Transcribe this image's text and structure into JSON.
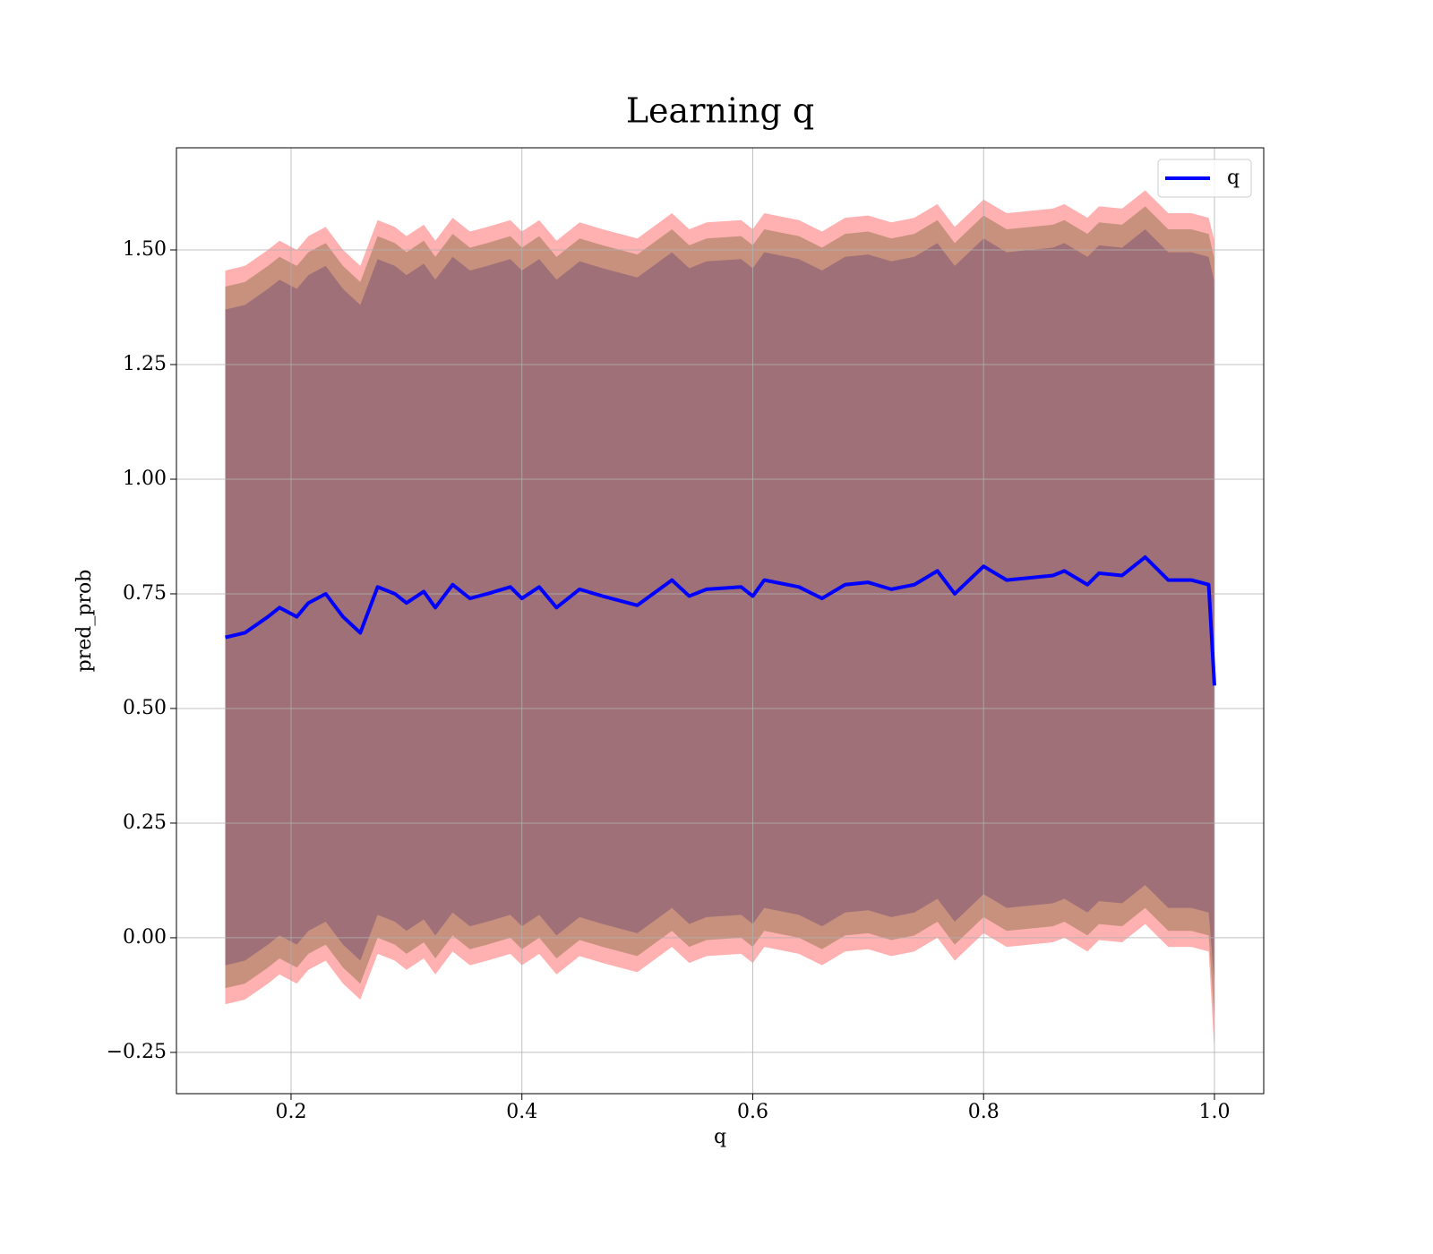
{
  "chart_data": {
    "type": "line",
    "title": "Learning q",
    "xlabel": "q",
    "ylabel": "pred_prob",
    "x": [
      0.143,
      0.16,
      0.18,
      0.19,
      0.205,
      0.215,
      0.23,
      0.245,
      0.26,
      0.275,
      0.29,
      0.3,
      0.315,
      0.325,
      0.34,
      0.355,
      0.37,
      0.39,
      0.4,
      0.415,
      0.43,
      0.45,
      0.47,
      0.5,
      0.53,
      0.545,
      0.56,
      0.59,
      0.6,
      0.61,
      0.64,
      0.66,
      0.68,
      0.7,
      0.72,
      0.74,
      0.76,
      0.775,
      0.8,
      0.82,
      0.86,
      0.87,
      0.89,
      0.9,
      0.92,
      0.94,
      0.96,
      0.98,
      0.995,
      1.0
    ],
    "series": [
      {
        "name": "q",
        "color": "#0000ff",
        "values": [
          0.655,
          0.665,
          0.7,
          0.72,
          0.7,
          0.73,
          0.75,
          0.7,
          0.665,
          0.765,
          0.75,
          0.73,
          0.755,
          0.72,
          0.77,
          0.74,
          0.75,
          0.765,
          0.74,
          0.765,
          0.72,
          0.76,
          0.745,
          0.725,
          0.78,
          0.745,
          0.76,
          0.765,
          0.745,
          0.78,
          0.765,
          0.74,
          0.77,
          0.775,
          0.76,
          0.77,
          0.8,
          0.75,
          0.81,
          0.78,
          0.79,
          0.8,
          0.77,
          0.795,
          0.79,
          0.83,
          0.78,
          0.78,
          0.77,
          0.55
        ]
      }
    ],
    "bands": [
      {
        "color": "#ffb0b0",
        "upper": [
          1.455,
          1.465,
          1.5,
          1.52,
          1.5,
          1.53,
          1.55,
          1.5,
          1.465,
          1.565,
          1.55,
          1.53,
          1.555,
          1.52,
          1.57,
          1.54,
          1.55,
          1.565,
          1.54,
          1.565,
          1.52,
          1.56,
          1.545,
          1.525,
          1.58,
          1.545,
          1.56,
          1.565,
          1.545,
          1.58,
          1.565,
          1.54,
          1.57,
          1.575,
          1.56,
          1.57,
          1.6,
          1.55,
          1.61,
          1.58,
          1.59,
          1.6,
          1.57,
          1.595,
          1.59,
          1.63,
          1.58,
          1.58,
          1.57,
          1.52
        ],
        "lower": [
          -0.145,
          -0.135,
          -0.1,
          -0.08,
          -0.1,
          -0.07,
          -0.05,
          -0.1,
          -0.135,
          -0.035,
          -0.05,
          -0.07,
          -0.045,
          -0.08,
          -0.03,
          -0.06,
          -0.05,
          -0.035,
          -0.06,
          -0.035,
          -0.08,
          -0.04,
          -0.055,
          -0.075,
          -0.02,
          -0.055,
          -0.04,
          -0.035,
          -0.055,
          -0.02,
          -0.035,
          -0.06,
          -0.03,
          -0.025,
          -0.04,
          -0.03,
          0,
          -0.05,
          0.01,
          -0.02,
          -0.01,
          0,
          -0.03,
          -0.005,
          -0.01,
          0.03,
          -0.02,
          -0.02,
          -0.03,
          -0.25
        ]
      },
      {
        "color": "#c8917e",
        "upper": [
          1.42,
          1.43,
          1.465,
          1.485,
          1.465,
          1.495,
          1.515,
          1.465,
          1.43,
          1.53,
          1.515,
          1.495,
          1.52,
          1.485,
          1.535,
          1.505,
          1.515,
          1.53,
          1.505,
          1.53,
          1.485,
          1.525,
          1.51,
          1.49,
          1.545,
          1.51,
          1.525,
          1.53,
          1.51,
          1.545,
          1.53,
          1.505,
          1.535,
          1.54,
          1.525,
          1.535,
          1.565,
          1.515,
          1.575,
          1.545,
          1.555,
          1.565,
          1.535,
          1.56,
          1.555,
          1.595,
          1.545,
          1.545,
          1.535,
          1.48
        ],
        "lower": [
          -0.11,
          -0.1,
          -0.065,
          -0.045,
          -0.065,
          -0.035,
          -0.015,
          -0.065,
          -0.1,
          0,
          -0.015,
          -0.035,
          -0.01,
          -0.045,
          0.005,
          -0.025,
          -0.015,
          0,
          -0.025,
          0,
          -0.045,
          -0.005,
          -0.02,
          -0.04,
          0.015,
          -0.02,
          -0.005,
          0,
          -0.02,
          0.015,
          0,
          -0.025,
          0.005,
          0.01,
          -0.005,
          0.005,
          0.035,
          -0.015,
          0.045,
          0.015,
          0.025,
          0.035,
          0.005,
          0.03,
          0.025,
          0.065,
          0.015,
          0.015,
          0.005,
          -0.18
        ]
      },
      {
        "color": "#a07078",
        "upper": [
          1.37,
          1.38,
          1.415,
          1.435,
          1.415,
          1.445,
          1.465,
          1.415,
          1.38,
          1.48,
          1.465,
          1.445,
          1.47,
          1.435,
          1.485,
          1.455,
          1.465,
          1.48,
          1.455,
          1.48,
          1.435,
          1.475,
          1.46,
          1.44,
          1.495,
          1.46,
          1.475,
          1.48,
          1.46,
          1.495,
          1.48,
          1.455,
          1.485,
          1.49,
          1.475,
          1.485,
          1.515,
          1.465,
          1.525,
          1.495,
          1.505,
          1.515,
          1.485,
          1.51,
          1.505,
          1.545,
          1.495,
          1.495,
          1.485,
          1.43
        ],
        "lower": [
          -0.06,
          -0.05,
          -0.015,
          0.005,
          -0.015,
          0.015,
          0.035,
          -0.015,
          -0.05,
          0.05,
          0.035,
          0.015,
          0.04,
          0.005,
          0.055,
          0.025,
          0.035,
          0.05,
          0.025,
          0.05,
          0.005,
          0.045,
          0.03,
          0.01,
          0.065,
          0.03,
          0.045,
          0.05,
          0.03,
          0.065,
          0.05,
          0.025,
          0.055,
          0.06,
          0.045,
          0.055,
          0.085,
          0.035,
          0.095,
          0.065,
          0.075,
          0.085,
          0.055,
          0.08,
          0.075,
          0.115,
          0.065,
          0.065,
          0.055,
          -0.1
        ]
      }
    ],
    "xlim": [
      0.1007,
      1.0427
    ],
    "ylim": [
      -0.34,
      1.7227
    ],
    "xticks": [
      {
        "value": 0.2,
        "label": "0.2"
      },
      {
        "value": 0.4,
        "label": "0.4"
      },
      {
        "value": 0.6,
        "label": "0.6"
      },
      {
        "value": 0.8,
        "label": "0.8"
      },
      {
        "value": 1.0,
        "label": "1.0"
      }
    ],
    "yticks": [
      {
        "value": -0.25,
        "label": "−0.25"
      },
      {
        "value": 0,
        "label": "0.00"
      },
      0.25,
      {
        "value": 0.5,
        "label": "0.50"
      },
      0.75,
      {
        "value": 1,
        "label": "1.00"
      },
      1.25,
      {
        "value": 1.5,
        "label": "1.50"
      }
    ],
    "grid": true,
    "legend": "upper right"
  }
}
